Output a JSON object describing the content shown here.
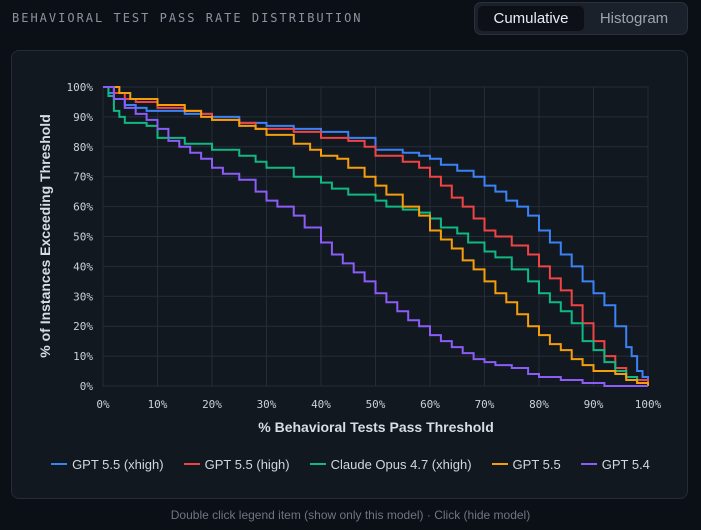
{
  "header": {
    "title": "BEHAVIORAL TEST PASS RATE DISTRIBUTION"
  },
  "view_toggle": {
    "options": [
      "Cumulative",
      "Histogram"
    ],
    "selected": "Cumulative"
  },
  "hint": "Double click legend item (show only this model) · Click (hide model)",
  "chart_data": {
    "type": "line",
    "title": "",
    "xlabel": "% Behavioral Tests Pass Threshold",
    "ylabel": "% of Instances Exceeding Threshold",
    "xlim": [
      0,
      100
    ],
    "ylim": [
      0,
      100
    ],
    "xticks": [
      "0%",
      "10%",
      "20%",
      "30%",
      "40%",
      "50%",
      "60%",
      "70%",
      "80%",
      "90%",
      "100%"
    ],
    "yticks": [
      "0%",
      "10%",
      "20%",
      "30%",
      "40%",
      "50%",
      "60%",
      "70%",
      "80%",
      "90%",
      "100%"
    ],
    "grid": true,
    "legend_position": "bottom",
    "step": true,
    "series": [
      {
        "name": "GPT 5.5 (xhigh)",
        "color": "#3b82f6",
        "points": [
          [
            0,
            100
          ],
          [
            1,
            98
          ],
          [
            2,
            96
          ],
          [
            4,
            94
          ],
          [
            6,
            93
          ],
          [
            8,
            92
          ],
          [
            12,
            92
          ],
          [
            15,
            91
          ],
          [
            20,
            90
          ],
          [
            25,
            88
          ],
          [
            30,
            87
          ],
          [
            35,
            86
          ],
          [
            40,
            85
          ],
          [
            45,
            83
          ],
          [
            50,
            79
          ],
          [
            55,
            78
          ],
          [
            58,
            77
          ],
          [
            60,
            76
          ],
          [
            62,
            74
          ],
          [
            65,
            72
          ],
          [
            68,
            70
          ],
          [
            70,
            67
          ],
          [
            72,
            65
          ],
          [
            74,
            62
          ],
          [
            76,
            60
          ],
          [
            78,
            57
          ],
          [
            80,
            52
          ],
          [
            82,
            48
          ],
          [
            84,
            44
          ],
          [
            86,
            40
          ],
          [
            88,
            35
          ],
          [
            90,
            31
          ],
          [
            92,
            27
          ],
          [
            94,
            20
          ],
          [
            96,
            13
          ],
          [
            97,
            10
          ],
          [
            98,
            5
          ],
          [
            99,
            3
          ],
          [
            100,
            1
          ]
        ]
      },
      {
        "name": "GPT 5.5 (high)",
        "color": "#ef4444",
        "points": [
          [
            0,
            100
          ],
          [
            2,
            98
          ],
          [
            4,
            96
          ],
          [
            6,
            95
          ],
          [
            10,
            93
          ],
          [
            15,
            92
          ],
          [
            18,
            91
          ],
          [
            20,
            89
          ],
          [
            25,
            88
          ],
          [
            28,
            86
          ],
          [
            30,
            86
          ],
          [
            35,
            85
          ],
          [
            40,
            83
          ],
          [
            45,
            82
          ],
          [
            48,
            80
          ],
          [
            50,
            77
          ],
          [
            55,
            75
          ],
          [
            58,
            73
          ],
          [
            60,
            70
          ],
          [
            62,
            67
          ],
          [
            64,
            63
          ],
          [
            66,
            60
          ],
          [
            68,
            56
          ],
          [
            70,
            52
          ],
          [
            72,
            50
          ],
          [
            75,
            47
          ],
          [
            78,
            44
          ],
          [
            80,
            40
          ],
          [
            82,
            36
          ],
          [
            84,
            32
          ],
          [
            86,
            27
          ],
          [
            88,
            21
          ],
          [
            90,
            15
          ],
          [
            92,
            10
          ],
          [
            94,
            6
          ],
          [
            96,
            3
          ],
          [
            98,
            2
          ],
          [
            100,
            1
          ]
        ]
      },
      {
        "name": "Claude Opus 4.7 (xhigh)",
        "color": "#10b981",
        "points": [
          [
            0,
            100
          ],
          [
            1,
            97
          ],
          [
            2,
            92
          ],
          [
            3,
            90
          ],
          [
            4,
            88
          ],
          [
            8,
            87
          ],
          [
            10,
            83
          ],
          [
            15,
            81
          ],
          [
            20,
            79
          ],
          [
            25,
            77
          ],
          [
            28,
            75
          ],
          [
            30,
            73
          ],
          [
            35,
            70
          ],
          [
            40,
            68
          ],
          [
            42,
            66
          ],
          [
            45,
            64
          ],
          [
            50,
            62
          ],
          [
            52,
            60
          ],
          [
            55,
            59
          ],
          [
            58,
            58
          ],
          [
            60,
            56
          ],
          [
            62,
            53
          ],
          [
            65,
            51
          ],
          [
            67,
            48
          ],
          [
            70,
            45
          ],
          [
            72,
            43
          ],
          [
            75,
            39
          ],
          [
            78,
            35
          ],
          [
            80,
            31
          ],
          [
            82,
            28
          ],
          [
            84,
            25
          ],
          [
            86,
            21
          ],
          [
            88,
            15
          ],
          [
            90,
            12
          ],
          [
            92,
            8
          ],
          [
            94,
            5
          ],
          [
            96,
            3
          ],
          [
            98,
            1
          ],
          [
            100,
            1
          ]
        ]
      },
      {
        "name": "GPT 5.5",
        "color": "#f59e0b",
        "points": [
          [
            0,
            100
          ],
          [
            3,
            98
          ],
          [
            5,
            96
          ],
          [
            10,
            94
          ],
          [
            15,
            92
          ],
          [
            18,
            90
          ],
          [
            20,
            89
          ],
          [
            25,
            87
          ],
          [
            28,
            86
          ],
          [
            30,
            84
          ],
          [
            35,
            81
          ],
          [
            38,
            79
          ],
          [
            40,
            77
          ],
          [
            43,
            76
          ],
          [
            45,
            73
          ],
          [
            48,
            70
          ],
          [
            50,
            67
          ],
          [
            52,
            64
          ],
          [
            55,
            60
          ],
          [
            58,
            57
          ],
          [
            60,
            52
          ],
          [
            62,
            49
          ],
          [
            64,
            46
          ],
          [
            66,
            42
          ],
          [
            68,
            39
          ],
          [
            70,
            35
          ],
          [
            72,
            31
          ],
          [
            74,
            28
          ],
          [
            76,
            24
          ],
          [
            78,
            20
          ],
          [
            80,
            17
          ],
          [
            82,
            14
          ],
          [
            84,
            12
          ],
          [
            86,
            9
          ],
          [
            88,
            7
          ],
          [
            90,
            5
          ],
          [
            94,
            4
          ],
          [
            96,
            2
          ],
          [
            98,
            1
          ],
          [
            100,
            0
          ]
        ]
      },
      {
        "name": "GPT 5.4",
        "color": "#8b5cf6",
        "points": [
          [
            0,
            100
          ],
          [
            2,
            96
          ],
          [
            4,
            93
          ],
          [
            6,
            91
          ],
          [
            8,
            89
          ],
          [
            10,
            86
          ],
          [
            12,
            82
          ],
          [
            14,
            80
          ],
          [
            16,
            78
          ],
          [
            18,
            76
          ],
          [
            20,
            73
          ],
          [
            22,
            71
          ],
          [
            25,
            69
          ],
          [
            28,
            65
          ],
          [
            30,
            62
          ],
          [
            32,
            60
          ],
          [
            35,
            57
          ],
          [
            37,
            53
          ],
          [
            40,
            48
          ],
          [
            42,
            44
          ],
          [
            44,
            41
          ],
          [
            46,
            38
          ],
          [
            48,
            35
          ],
          [
            50,
            31
          ],
          [
            52,
            28
          ],
          [
            54,
            25
          ],
          [
            56,
            22
          ],
          [
            58,
            20
          ],
          [
            60,
            17
          ],
          [
            62,
            15
          ],
          [
            64,
            13
          ],
          [
            66,
            11
          ],
          [
            68,
            9
          ],
          [
            70,
            8
          ],
          [
            72,
            7
          ],
          [
            75,
            6
          ],
          [
            78,
            4
          ],
          [
            80,
            3
          ],
          [
            84,
            2
          ],
          [
            88,
            1
          ],
          [
            92,
            0
          ],
          [
            100,
            0
          ]
        ]
      }
    ]
  }
}
